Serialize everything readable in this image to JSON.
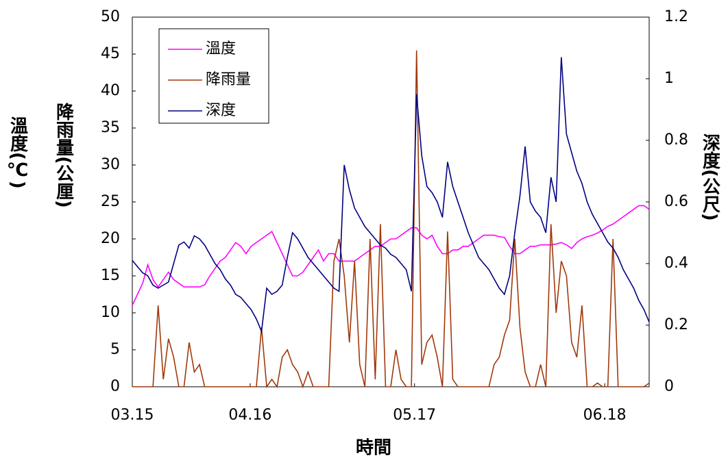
{
  "chart_data": {
    "type": "line",
    "xlabel": "時間",
    "ylabel": "溫度(℃)",
    "ylabel2": "降雨量(公厘)",
    "y2label": "深度(公尺)",
    "x": [
      0,
      1,
      2,
      3,
      4,
      5,
      6,
      7,
      8,
      9,
      10,
      11,
      12,
      13,
      14,
      15,
      16,
      17,
      18,
      19,
      20,
      21,
      22,
      23,
      24,
      25,
      26,
      27,
      28,
      29,
      30,
      31,
      32,
      33,
      34,
      35,
      36,
      37,
      38,
      39,
      40,
      41,
      42,
      43,
      44,
      45,
      46,
      47,
      48,
      49,
      50,
      51,
      52,
      53,
      54,
      55,
      56,
      57,
      58,
      59,
      60,
      61,
      62,
      63,
      64,
      65,
      66,
      67,
      68,
      69,
      70,
      71,
      72,
      73,
      74,
      75,
      76,
      77,
      78,
      79,
      80,
      81,
      82,
      83,
      84,
      85,
      86,
      87,
      88,
      89,
      90,
      91,
      92,
      93,
      94,
      95,
      96,
      97,
      98,
      99,
      100
    ],
    "xlim": [
      0,
      100
    ],
    "xticks": [
      {
        "value": 0,
        "label": "03.15"
      },
      {
        "value": 22.8,
        "label": "04.16"
      },
      {
        "value": 54.6,
        "label": "05.17"
      },
      {
        "value": 91.4,
        "label": "06.18"
      }
    ],
    "ylim": [
      0,
      50
    ],
    "yticks": [
      0,
      5,
      10,
      15,
      20,
      25,
      30,
      35,
      40,
      45,
      50
    ],
    "y2lim": [
      0,
      1.2
    ],
    "y2ticks": [
      0,
      0.2,
      0.4,
      0.6,
      0.8,
      1,
      1.2
    ],
    "legend": "upper-left",
    "series": [
      {
        "name": "溫度",
        "color": "#ff00ff",
        "values": [
          11,
          12.5,
          14,
          16.5,
          14.5,
          13.5,
          14.5,
          15.5,
          14.5,
          14,
          13.5,
          13.5,
          13.5,
          13.5,
          13.8,
          15,
          16,
          17,
          17.5,
          18.5,
          19.5,
          19,
          18,
          19,
          19.5,
          20,
          20.5,
          21,
          19.5,
          18,
          16.5,
          15,
          15,
          15.5,
          16.5,
          17.5,
          18.5,
          17,
          18,
          18,
          17,
          17,
          17,
          17,
          17.5,
          18,
          18.5,
          19,
          19,
          19.5,
          20,
          20,
          20.5,
          21,
          21.5,
          21.5,
          20.5,
          20,
          20.5,
          19,
          18,
          18,
          18.5,
          18.5,
          19,
          19,
          19.5,
          20,
          20.5,
          20.5,
          20.5,
          20.3,
          20.2,
          19,
          18,
          18,
          18.5,
          19,
          19,
          19.2,
          19.2,
          19.2,
          19.3,
          19.5,
          19.2,
          18.7,
          19.5,
          20,
          20.3,
          20.5,
          20.8,
          21.2,
          21.7,
          22,
          22.5,
          23,
          23.5,
          24,
          24.5,
          24.5,
          24
        ]
      },
      {
        "name": "降雨量",
        "color": "#a0380a",
        "values": [
          0,
          0,
          0,
          0,
          0,
          11,
          1,
          6.5,
          4,
          0,
          0,
          6,
          2,
          3,
          0,
          0,
          0,
          0,
          0,
          0,
          0,
          0,
          0,
          0,
          0,
          8,
          0,
          1,
          0,
          4,
          5,
          3,
          2,
          0,
          2,
          0,
          0,
          0,
          0,
          17,
          20,
          15,
          6,
          17,
          3,
          0,
          20,
          1,
          22,
          0,
          0,
          5,
          1,
          0,
          0,
          45.5,
          3,
          6,
          7,
          4,
          0,
          21,
          1,
          0,
          0,
          0,
          0,
          0,
          0,
          0,
          3,
          4,
          7,
          9,
          20,
          8,
          2,
          0,
          0,
          3,
          0,
          22,
          10,
          17,
          15,
          6,
          4,
          11,
          0,
          0,
          0.5,
          0,
          0,
          20,
          0,
          0,
          0,
          0,
          0,
          0,
          0.5
        ]
      },
      {
        "name": "深度",
        "color": "#000080",
        "axis": "y2",
        "values": [
          0.41,
          0.39,
          0.37,
          0.36,
          0.33,
          0.32,
          0.33,
          0.34,
          0.4,
          0.46,
          0.47,
          0.45,
          0.49,
          0.48,
          0.46,
          0.43,
          0.4,
          0.38,
          0.35,
          0.33,
          0.3,
          0.29,
          0.27,
          0.25,
          0.22,
          0.18,
          0.32,
          0.3,
          0.31,
          0.33,
          0.42,
          0.5,
          0.48,
          0.45,
          0.42,
          0.4,
          0.38,
          0.36,
          0.34,
          0.32,
          0.31,
          0.72,
          0.64,
          0.58,
          0.55,
          0.52,
          0.5,
          0.48,
          0.46,
          0.45,
          0.43,
          0.42,
          0.4,
          0.38,
          0.31,
          0.95,
          0.75,
          0.65,
          0.63,
          0.6,
          0.55,
          0.73,
          0.65,
          0.6,
          0.55,
          0.5,
          0.46,
          0.42,
          0.4,
          0.38,
          0.35,
          0.32,
          0.3,
          0.36,
          0.5,
          0.62,
          0.78,
          0.6,
          0.57,
          0.55,
          0.5,
          0.68,
          0.6,
          1.07,
          0.82,
          0.76,
          0.7,
          0.66,
          0.6,
          0.56,
          0.53,
          0.5,
          0.47,
          0.45,
          0.42,
          0.38,
          0.35,
          0.32,
          0.28,
          0.25,
          0.21
        ]
      }
    ]
  }
}
